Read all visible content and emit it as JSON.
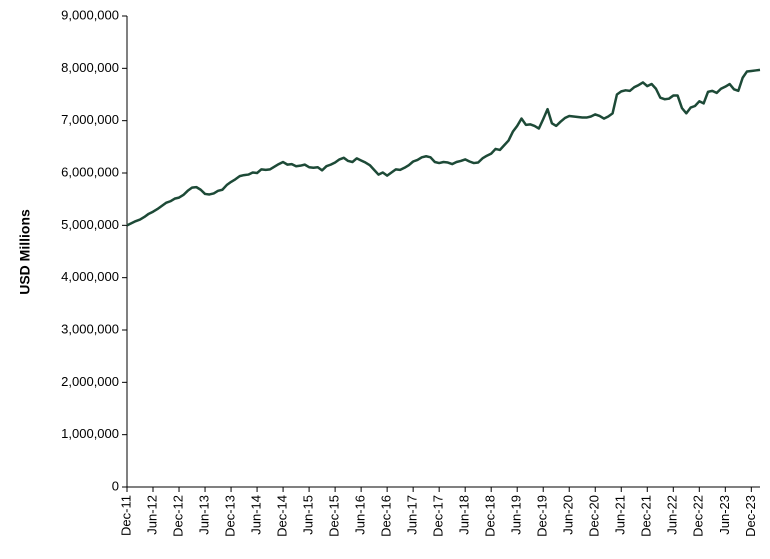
{
  "chart_data": {
    "type": "line",
    "y_label": "USD Millions",
    "categories": [
      "Dec-11",
      null,
      null,
      null,
      null,
      null,
      "Jun-12",
      null,
      null,
      null,
      null,
      null,
      "Dec-12",
      null,
      null,
      null,
      null,
      null,
      "Jun-13",
      null,
      null,
      null,
      null,
      null,
      "Dec-13",
      null,
      null,
      null,
      null,
      null,
      "Jun-14",
      null,
      null,
      null,
      null,
      null,
      "Dec-14",
      null,
      null,
      null,
      null,
      null,
      "Jun-15",
      null,
      null,
      null,
      null,
      null,
      "Dec-15",
      null,
      null,
      null,
      null,
      null,
      "Jun-16",
      null,
      null,
      null,
      null,
      null,
      "Dec-16",
      null,
      null,
      null,
      null,
      null,
      "Jun-17",
      null,
      null,
      null,
      null,
      null,
      "Dec-17",
      null,
      null,
      null,
      null,
      null,
      "Jun-18",
      null,
      null,
      null,
      null,
      null,
      "Dec-18",
      null,
      null,
      null,
      null,
      null,
      "Jun-19",
      null,
      null,
      null,
      null,
      null,
      "Dec-19",
      null,
      null,
      null,
      null,
      null,
      "Jun-20",
      null,
      null,
      null,
      null,
      null,
      "Dec-20",
      null,
      null,
      null,
      null,
      null,
      "Jun-21",
      null,
      null,
      null,
      null,
      null,
      "Dec-21",
      null,
      null,
      null,
      null,
      null,
      "Jun-22",
      null,
      null,
      null,
      null,
      null,
      "Dec-22",
      null,
      null,
      null,
      null,
      null,
      "Jun-23",
      null,
      null,
      null,
      null,
      null,
      "Dec-23",
      null,
      null
    ],
    "series": [
      {
        "color": "#1d4a37",
        "values": [
          5000000,
          5040000,
          5080000,
          5110000,
          5160000,
          5220000,
          5260000,
          5310000,
          5370000,
          5430000,
          5460000,
          5510000,
          5530000,
          5580000,
          5660000,
          5720000,
          5730000,
          5680000,
          5600000,
          5590000,
          5610000,
          5660000,
          5680000,
          5770000,
          5830000,
          5880000,
          5940000,
          5960000,
          5970000,
          6010000,
          6000000,
          6070000,
          6060000,
          6070000,
          6120000,
          6170000,
          6210000,
          6160000,
          6170000,
          6130000,
          6140000,
          6160000,
          6110000,
          6100000,
          6110000,
          6050000,
          6130000,
          6160000,
          6200000,
          6260000,
          6290000,
          6230000,
          6210000,
          6280000,
          6240000,
          6200000,
          6150000,
          6060000,
          5970000,
          6010000,
          5950000,
          6010000,
          6070000,
          6060000,
          6100000,
          6150000,
          6220000,
          6250000,
          6300000,
          6320000,
          6300000,
          6210000,
          6190000,
          6210000,
          6200000,
          6170000,
          6210000,
          6230000,
          6260000,
          6220000,
          6190000,
          6200000,
          6280000,
          6330000,
          6370000,
          6460000,
          6440000,
          6530000,
          6620000,
          6790000,
          6900000,
          7040000,
          6920000,
          6930000,
          6900000,
          6850000,
          7030000,
          7220000,
          6950000,
          6900000,
          6980000,
          7050000,
          7090000,
          7080000,
          7070000,
          7060000,
          7060000,
          7080000,
          7120000,
          7090000,
          7040000,
          7080000,
          7140000,
          7500000,
          7560000,
          7580000,
          7570000,
          7640000,
          7680000,
          7730000,
          7660000,
          7700000,
          7610000,
          7440000,
          7410000,
          7420000,
          7480000,
          7480000,
          7240000,
          7140000,
          7250000,
          7280000,
          7370000,
          7330000,
          7550000,
          7570000,
          7530000,
          7610000,
          7650000,
          7700000,
          7600000,
          7570000,
          7820000,
          7940000,
          7950000,
          7960000,
          7970000
        ]
      }
    ],
    "ylim": [
      0,
      9000000
    ],
    "yticks": [
      0,
      {
        "value": 1000000,
        "label": "1,000,000"
      },
      {
        "value": 2000000,
        "label": "2,000,000"
      },
      {
        "value": 3000000,
        "label": "3,000,000"
      },
      {
        "value": 4000000,
        "label": "4,000,000"
      },
      {
        "value": 5000000,
        "label": "5,000,000"
      },
      {
        "value": 6000000,
        "label": "6,000,000"
      },
      {
        "value": 7000000,
        "label": "7,000,000"
      },
      {
        "value": 8000000,
        "label": "8,000,000"
      },
      {
        "value": 9000000,
        "label": "9,000,000"
      }
    ],
    "grid": false
  }
}
